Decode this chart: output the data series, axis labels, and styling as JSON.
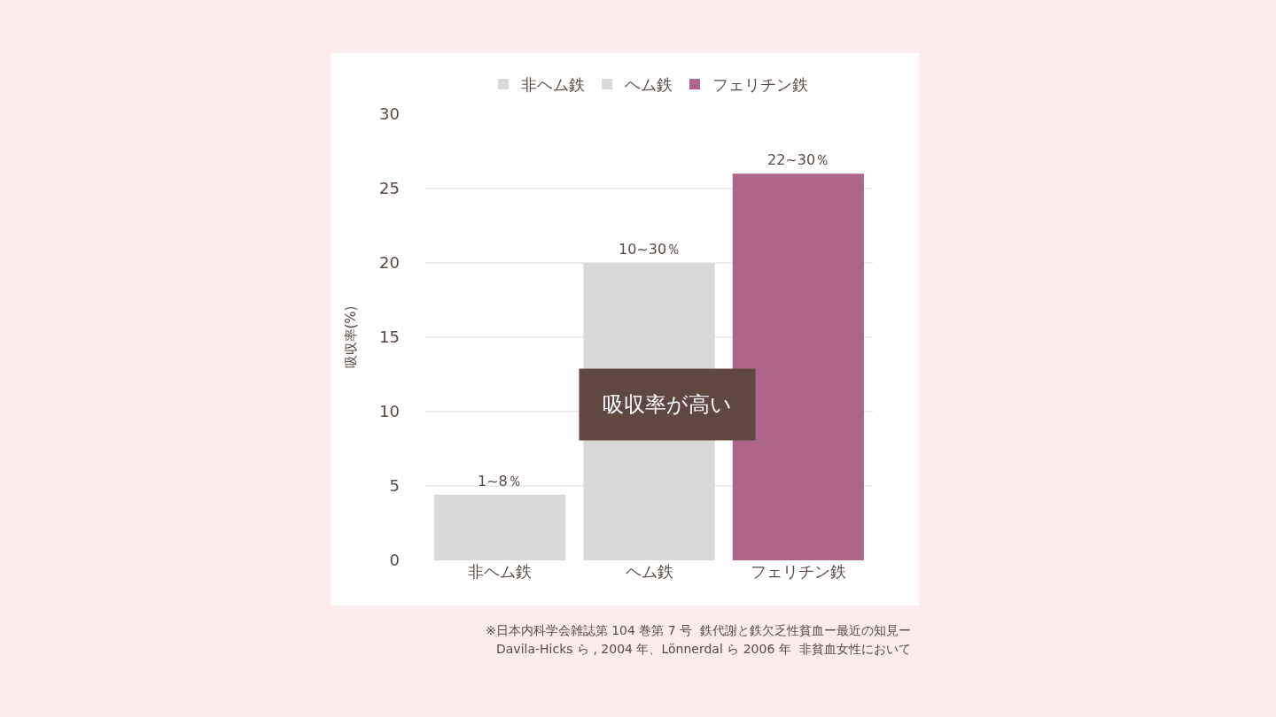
{
  "chart_data": {
    "type": "bar",
    "categories": [
      "非ヘム鉄",
      "ヘム鉄",
      "フェリチン鉄"
    ],
    "series": [
      {
        "name": "非ヘム鉄",
        "color": "#d9d9d9",
        "values": [
          4.4,
          null,
          null
        ]
      },
      {
        "name": "ヘム鉄",
        "color": "#d9d9d9",
        "values": [
          null,
          20,
          null
        ]
      },
      {
        "name": "フェリチン鉄",
        "color": "#ad6589",
        "values": [
          null,
          null,
          26
        ]
      }
    ],
    "ylabel": "吸収率(%)",
    "ylim": [
      0,
      30
    ],
    "yticks": [
      0,
      5,
      10,
      15,
      20,
      25,
      30
    ],
    "grid": "y",
    "legend": "top",
    "annotations": [
      {
        "text": "1~8％",
        "x": "非ヘム鉄",
        "y": 4.4
      },
      {
        "text": "10~30％",
        "x": "ヘム鉄",
        "y": 20
      },
      {
        "text": "22~30％",
        "x": "フェリチン鉄",
        "y": 26
      },
      "吸収率が高い",
      "※日本内科学会雑誌第 104 巻第 7 号  鉄代謝と鉄欠乏性貧血ー最近の知見ー",
      "Davila-Hicks ら , 2004 年、Lönnerdal ら 2006 年  非貧血女性において"
    ]
  }
}
